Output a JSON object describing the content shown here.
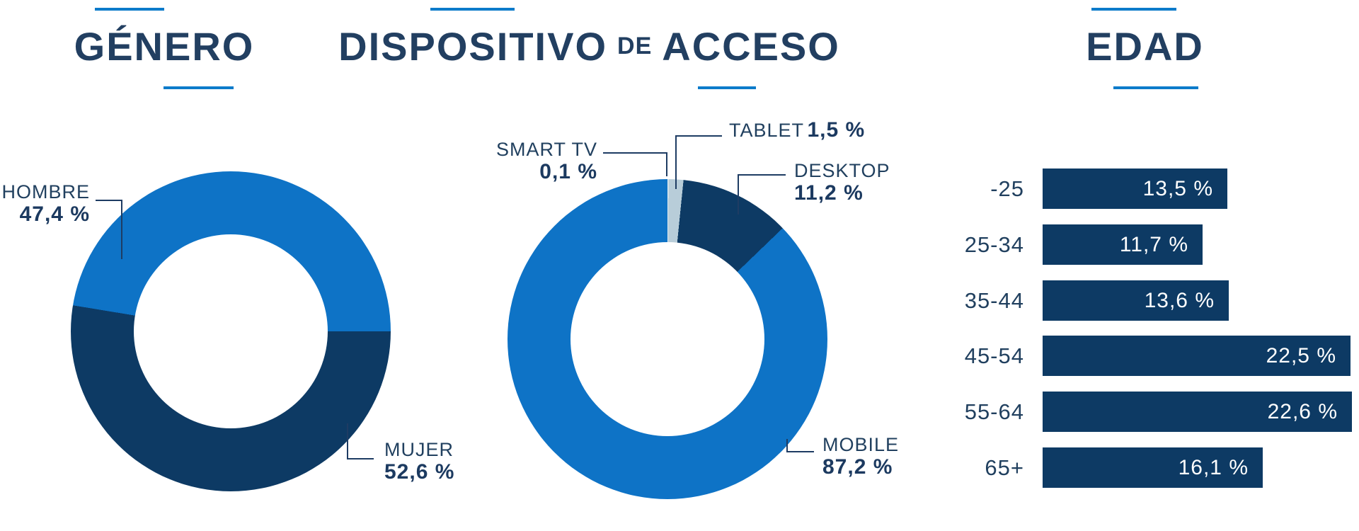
{
  "palette": {
    "blue": "#0e73c6",
    "navy": "#0d3a64",
    "pale": "#b8cdd9",
    "pale_light": "#dde8ee",
    "text": "#21405f",
    "accent": "#0c7bca",
    "bar_value_text": "#ffffff"
  },
  "genero": {
    "title": "GÉNERO",
    "hombre_label": "HOMBRE",
    "hombre_value": "47,4 %",
    "mujer_label": "MUJER",
    "mujer_value": "52,6 %"
  },
  "dispositivo": {
    "title_part1": "DISPOSITIVO",
    "title_part2": "DE",
    "title_part3": "ACCESO",
    "smarttv_label": "SMART TV",
    "smarttv_value": "0,1 %",
    "tablet_label": "TABLET",
    "tablet_value": "1,5 %",
    "desktop_label": "DESKTOP",
    "desktop_value": "11,2 %",
    "mobile_label": "MOBILE",
    "mobile_value": "87,2 %"
  },
  "edad": {
    "title": "EDAD",
    "rows": [
      {
        "label": "-25",
        "value": "13,5 %"
      },
      {
        "label": "25-34",
        "value": "11,7 %"
      },
      {
        "label": "35-44",
        "value": "13,6 %"
      },
      {
        "label": "45-54",
        "value": "22,5 %"
      },
      {
        "label": "55-64",
        "value": "22,6 %"
      },
      {
        "label": "65+",
        "value": "16,1 %"
      }
    ]
  },
  "chart_data": [
    {
      "type": "pie",
      "title": "GÉNERO",
      "labels": [
        "HOMBRE",
        "MUJER"
      ],
      "values": [
        47.4,
        52.6
      ],
      "unit": "%",
      "colors": [
        "#0e73c6",
        "#0d3a64"
      ],
      "donut": true,
      "start_angle_deg_clockwise_from_top": 90,
      "order_clockwise_from_3oclock": [
        "MUJER",
        "HOMBRE"
      ]
    },
    {
      "type": "pie",
      "title": "DISPOSITIVO DE ACCESO",
      "labels": [
        "SMART TV",
        "TABLET",
        "DESKTOP",
        "MOBILE"
      ],
      "values": [
        0.1,
        1.5,
        11.2,
        87.2
      ],
      "unit": "%",
      "colors": [
        "#dde8ee",
        "#b8cdd9",
        "#0d3a64",
        "#0e73c6"
      ],
      "donut": true,
      "start_angle_deg_clockwise_from_top": 0
    },
    {
      "type": "bar",
      "title": "EDAD",
      "orientation": "horizontal",
      "categories": [
        "-25",
        "25-34",
        "35-44",
        "45-54",
        "55-64",
        "65+"
      ],
      "values": [
        13.5,
        11.7,
        13.6,
        22.5,
        22.6,
        16.1
      ],
      "unit": "%",
      "bar_color": "#0d3a64",
      "value_labels_inside": true,
      "xlim": [
        0,
        23.5
      ]
    }
  ]
}
